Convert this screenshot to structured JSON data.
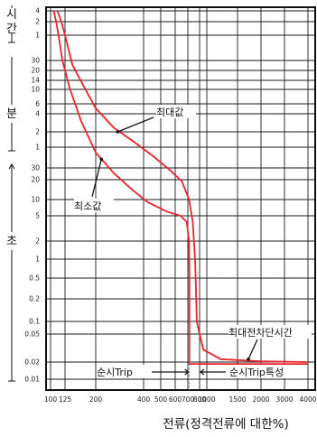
{
  "chart_data": {
    "type": "line",
    "title": "",
    "xlabel": "전류(정격전류에 대한%)",
    "x_scale": "log",
    "xlim": [
      100,
      4000
    ],
    "x_ticks": [
      {
        "value": 100,
        "label": "100"
      },
      {
        "value": 125,
        "label": "125"
      },
      {
        "value": 200,
        "label": "200"
      },
      {
        "value": 400,
        "label": "400"
      },
      {
        "value": 500,
        "label": "500"
      },
      {
        "value": 600,
        "label": "600"
      },
      {
        "value": 700,
        "label": "700"
      },
      {
        "value": 800,
        "label": "800"
      },
      {
        "value": 1000,
        "label": "1000"
      },
      {
        "value": 1500,
        "label": "1500"
      },
      {
        "value": 2000,
        "label": "2000"
      },
      {
        "value": 3000,
        "label": "3000"
      },
      {
        "value": 4000,
        "label": "4000"
      }
    ],
    "y_scale": "log",
    "ylabel_unit": "seconds",
    "ylim": [
      0.005,
      14400
    ],
    "y_groups": [
      {
        "label": "시간",
        "ticks": [
          {
            "value": 14400,
            "label": "4"
          },
          {
            "value": 7200,
            "label": "2"
          },
          {
            "value": 3600,
            "label": "1"
          }
        ]
      },
      {
        "label": "분",
        "ticks": [
          {
            "value": 1800,
            "label": "30"
          },
          {
            "value": 1200,
            "label": "20"
          },
          {
            "value": 840,
            "label": "14"
          },
          {
            "value": 600,
            "label": "10"
          },
          {
            "value": 360,
            "label": "6"
          },
          {
            "value": 240,
            "label": "4"
          },
          {
            "value": 120,
            "label": "2"
          },
          {
            "value": 60,
            "label": "1"
          }
        ]
      },
      {
        "label": "초",
        "ticks": [
          {
            "value": 30,
            "label": "30"
          },
          {
            "value": 20,
            "label": "20"
          },
          {
            "value": 10,
            "label": "10"
          },
          {
            "value": 5,
            "label": "5"
          },
          {
            "value": 2,
            "label": "2"
          },
          {
            "value": 1,
            "label": "1"
          },
          {
            "value": 0.5,
            "label": "0.5"
          },
          {
            "value": 0.2,
            "label": "0.2"
          },
          {
            "value": 0.1,
            "label": "0.1"
          },
          {
            "value": 0.05,
            "label": "0.05"
          },
          {
            "value": 0.02,
            "label": "0.02"
          },
          {
            "value": 0.01,
            "label": "0.01"
          }
        ]
      }
    ],
    "grid": true,
    "series": [
      {
        "name": "최대값",
        "color": "#e8242c",
        "points": [
          [
            111,
            14400
          ],
          [
            118,
            7200
          ],
          [
            125,
            3600
          ],
          [
            140,
            1500
          ],
          [
            165,
            700
          ],
          [
            200,
            300
          ],
          [
            260,
            140
          ],
          [
            340,
            80
          ],
          [
            450,
            45
          ],
          [
            560,
            28
          ],
          [
            650,
            19
          ],
          [
            710,
            10
          ],
          [
            740,
            4
          ],
          [
            760,
            1
          ],
          [
            768,
            0.3
          ],
          [
            775,
            0.1
          ],
          [
            800,
            0.05
          ],
          [
            900,
            0.03
          ],
          [
            1200,
            0.022
          ],
          [
            2000,
            0.0205
          ],
          [
            4000,
            0.02
          ]
        ]
      },
      {
        "name": "최소값",
        "color": "#e8242c",
        "points": [
          [
            105,
            14400
          ],
          [
            109,
            7200
          ],
          [
            113,
            3600
          ],
          [
            120,
            1800
          ],
          [
            135,
            600
          ],
          [
            160,
            180
          ],
          [
            200,
            50
          ],
          [
            260,
            25
          ],
          [
            340,
            14
          ],
          [
            420,
            9
          ],
          [
            540,
            6
          ],
          [
            640,
            5
          ],
          [
            690,
            4
          ],
          [
            710,
            2
          ],
          [
            712,
            0.5
          ],
          [
            712,
            0.1
          ],
          [
            712,
            0.0185
          ],
          [
            4000,
            0.0185
          ]
        ]
      }
    ],
    "annotations": [
      {
        "text": "최대값",
        "target_series": "최대값"
      },
      {
        "text": "최소값",
        "target_series": "최소값"
      },
      {
        "text": "최대전차단시간"
      },
      {
        "text": "순시Trip"
      },
      {
        "text": "순시Trip특성"
      }
    ]
  }
}
